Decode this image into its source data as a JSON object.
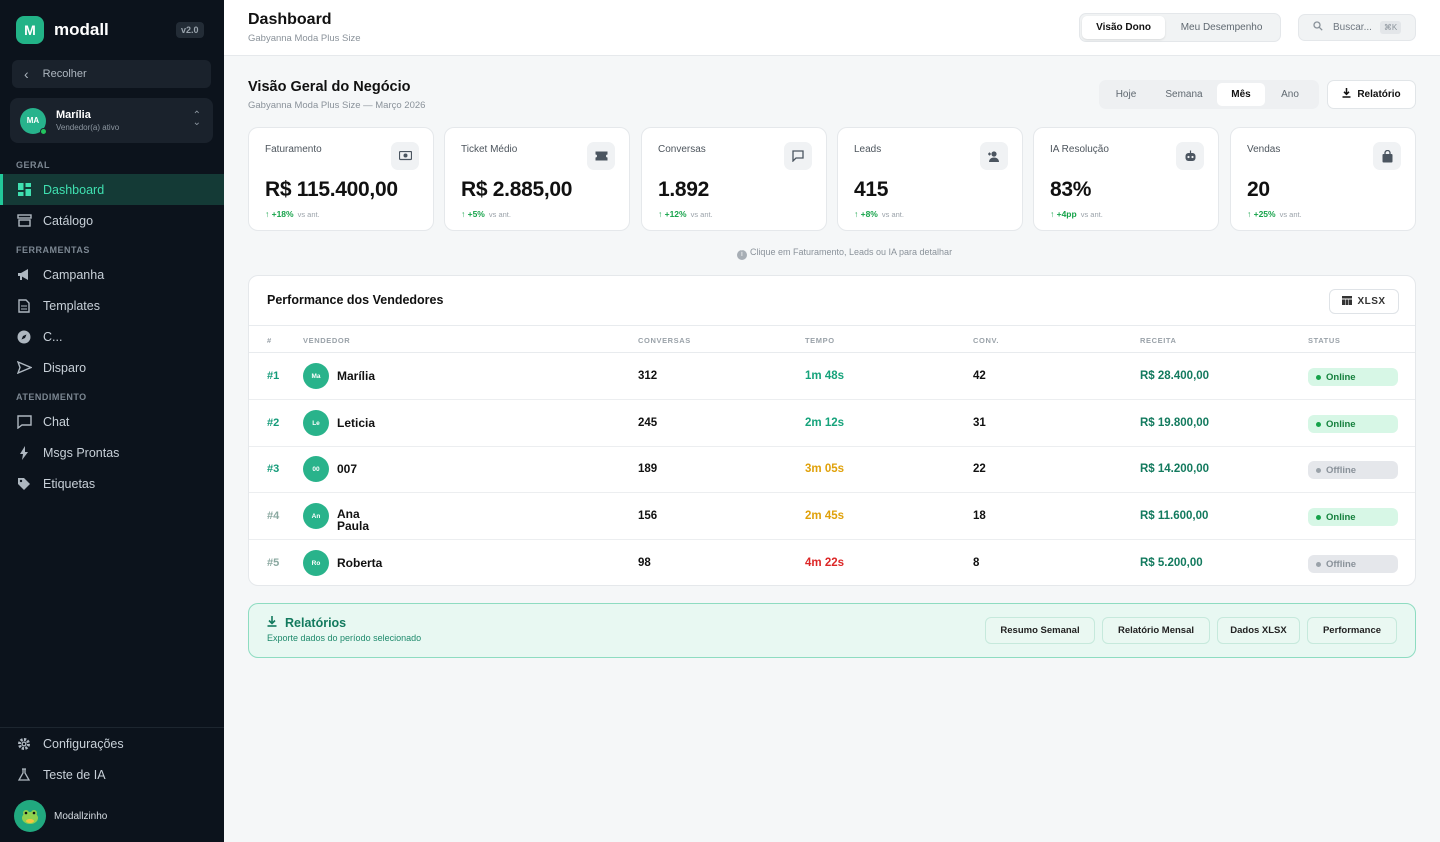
{
  "app": {
    "logo_letter": "M",
    "name": "modall",
    "version": "v2.0"
  },
  "sidebar": {
    "collapse_label": "Recolher",
    "user": {
      "initials": "MA",
      "name": "Marília",
      "role": "Vendedor(a) ativo"
    },
    "sections": {
      "geral": "GERAL",
      "ferramentas": "FERRAMENTAS",
      "atendimento": "ATENDIMENTO"
    },
    "items": [
      {
        "label": "Dashboard",
        "icon": "dashboard-icon"
      },
      {
        "label": "Catálogo",
        "icon": "catalog-icon"
      },
      {
        "label": "Campanha",
        "icon": "megaphone-icon"
      },
      {
        "label": "Templates",
        "icon": "document-icon"
      },
      {
        "label": "C...",
        "icon": "compass-icon"
      },
      {
        "label": "Disparo",
        "icon": "send-icon"
      },
      {
        "label": "Chat",
        "icon": "chat-icon"
      },
      {
        "label": "Msgs Prontas",
        "icon": "bolt-icon"
      },
      {
        "label": "Etiquetas",
        "icon": "tag-icon"
      }
    ],
    "footer": [
      {
        "label": "Configurações",
        "icon": "gear-icon"
      },
      {
        "label": "Teste de IA",
        "icon": "flask-icon"
      }
    ],
    "bot_name": "Modallzinho"
  },
  "header": {
    "title": "Dashboard",
    "subtitle": "Gabyanna Moda Plus Size",
    "views": [
      "Visão Dono",
      "Meu Desempenho"
    ],
    "search_label": "Buscar...",
    "search_shortcut": "⌘K"
  },
  "overview": {
    "title": "Visão Geral do Negócio",
    "subtitle": "Gabyanna Moda Plus Size — Março 2026",
    "periods": [
      "Hoje",
      "Semana",
      "Mês",
      "Ano"
    ],
    "active_period": "Mês",
    "report_button": "Relatório"
  },
  "kpis": [
    {
      "label": "Faturamento",
      "value": "R$ 115.400,00",
      "delta": "↑ +18%",
      "icon": "money-icon"
    },
    {
      "label": "Ticket Médio",
      "value": "R$ 2.885,00",
      "delta": "↑ +5%",
      "icon": "ticket-icon"
    },
    {
      "label": "Conversas",
      "value": "1.892",
      "delta": "↑ +12%",
      "icon": "message-icon"
    },
    {
      "label": "Leads",
      "value": "415",
      "delta": "↑ +8%",
      "icon": "user-plus-icon"
    },
    {
      "label": "IA Resolução",
      "value": "83%",
      "delta": "↑ +4pp",
      "icon": "robot-icon"
    },
    {
      "label": "Vendas",
      "value": "20",
      "delta": "↑ +25%",
      "icon": "bag-icon"
    }
  ],
  "kpi_compare": "vs ant.",
  "hint": "Clique em Faturamento, Leads ou IA para detalhar",
  "performance": {
    "title": "Performance dos Vendedores",
    "export_label": "XLSX",
    "columns": [
      "#",
      "VENDEDOR",
      "CONVERSAS",
      "TEMPO",
      "CONV.",
      "RECEITA",
      "STATUS"
    ],
    "rows": [
      {
        "rank": "#1",
        "initials": "Ma",
        "name": "Marília",
        "conversas": "312",
        "tempo": "1m 48s",
        "tempo_color": "#16a37b",
        "conv": "42",
        "receita": "R$ 28.400,00",
        "status": "Online"
      },
      {
        "rank": "#2",
        "initials": "Le",
        "name": "Leticia",
        "conversas": "245",
        "tempo": "2m 12s",
        "tempo_color": "#16a37b",
        "conv": "31",
        "receita": "R$ 19.800,00",
        "status": "Online"
      },
      {
        "rank": "#3",
        "initials": "00",
        "name": "007",
        "conversas": "189",
        "tempo": "3m 05s",
        "tempo_color": "#e0a10a",
        "conv": "22",
        "receita": "R$ 14.200,00",
        "status": "Offline"
      },
      {
        "rank": "#4",
        "initials": "An",
        "name": "Ana Paula",
        "conversas": "156",
        "tempo": "2m 45s",
        "tempo_color": "#e0a10a",
        "conv": "18",
        "receita": "R$ 11.600,00",
        "status": "Online"
      },
      {
        "rank": "#5",
        "initials": "Ro",
        "name": "Roberta",
        "conversas": "98",
        "tempo": "4m 22s",
        "tempo_color": "#dc2626",
        "conv": "8",
        "receita": "R$ 5.200,00",
        "status": "Offline"
      }
    ]
  },
  "reports": {
    "title": "Relatórios",
    "subtitle": "Exporte dados do período selecionado",
    "buttons": [
      "Resumo Semanal",
      "Relatório Mensal",
      "Dados XLSX",
      "Performance"
    ]
  },
  "colors": {
    "accent": "#22b387",
    "sidebar_bg": "#0c131c",
    "online_bg": "#d7f7e6",
    "offline_bg": "#e5e7eb"
  }
}
